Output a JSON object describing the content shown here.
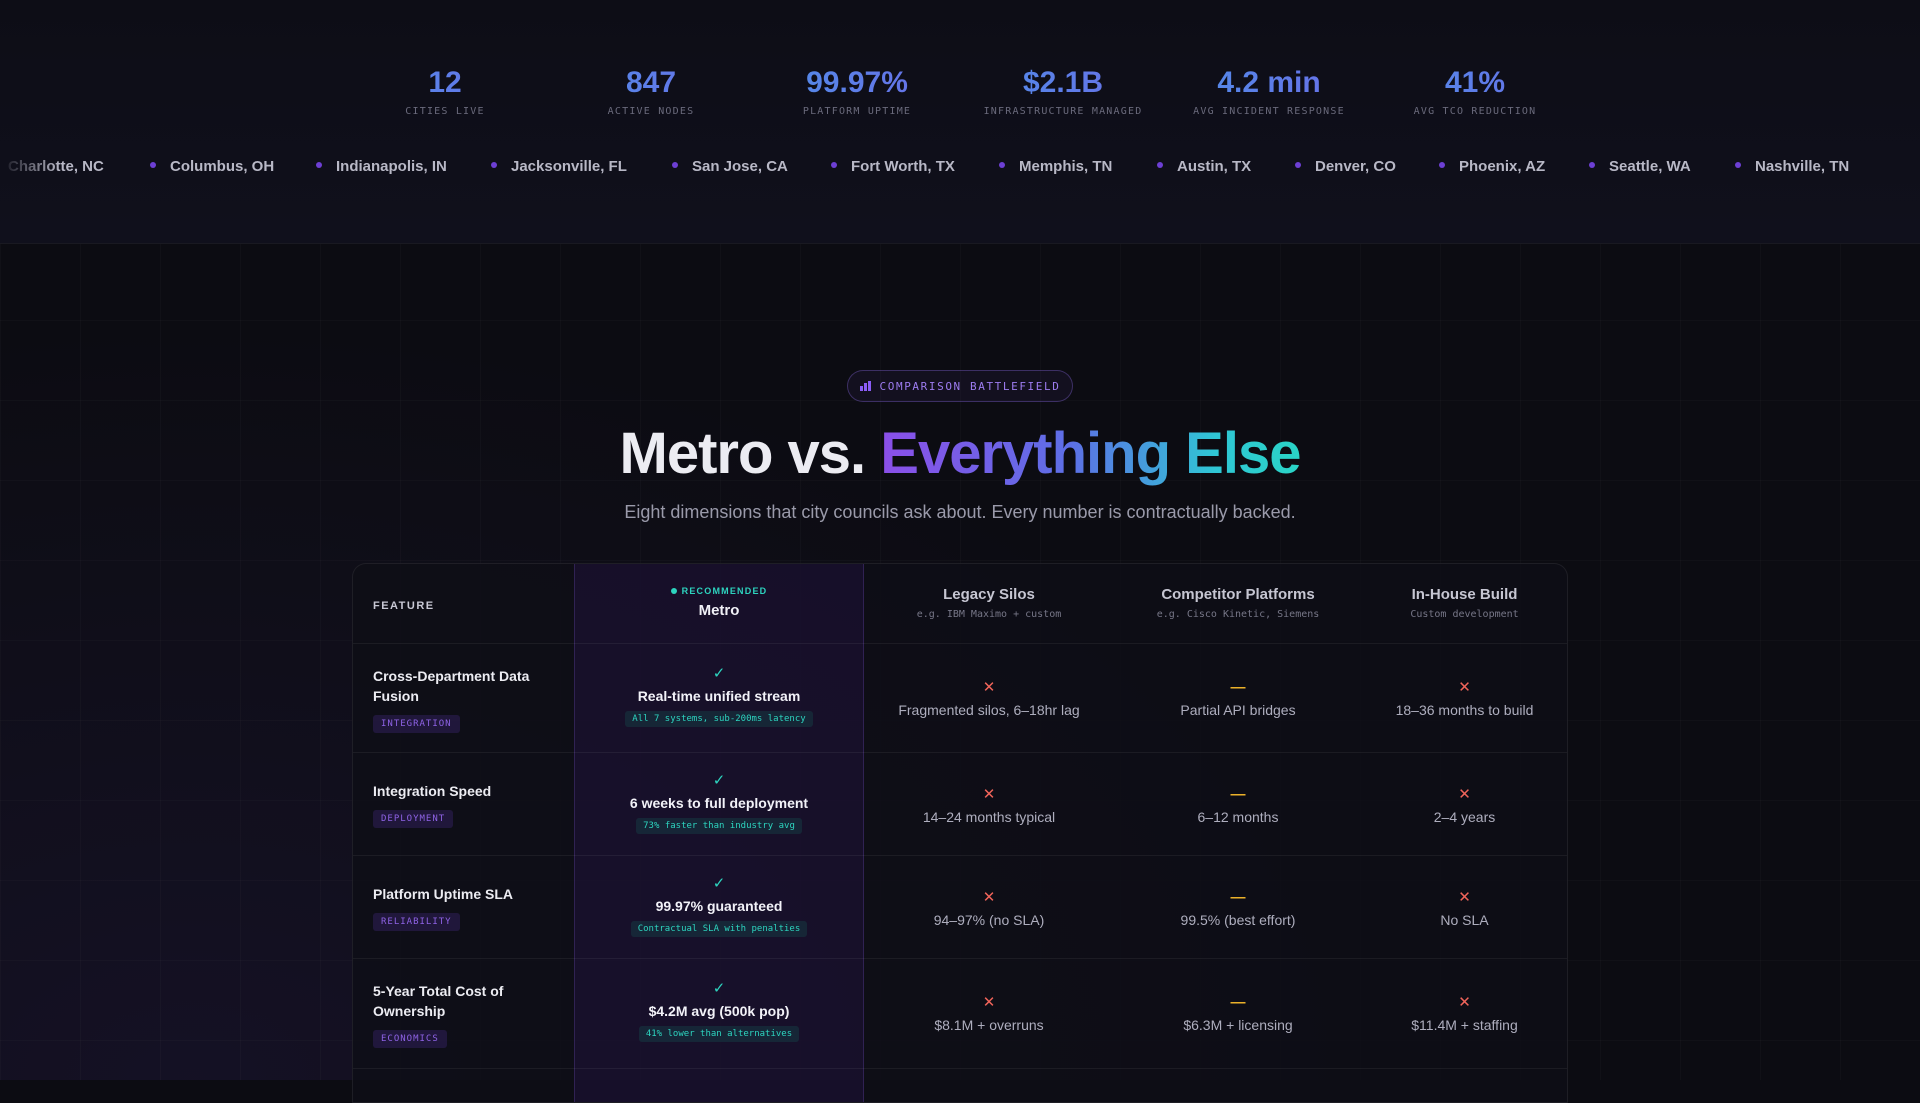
{
  "stats": [
    {
      "value": "12",
      "label": "CITIES LIVE"
    },
    {
      "value": "847",
      "label": "ACTIVE NODES"
    },
    {
      "value": "99.97%",
      "label": "PLATFORM UPTIME"
    },
    {
      "value": "$2.1B",
      "label": "INFRASTRUCTURE MANAGED"
    },
    {
      "value": "4.2 min",
      "label": "AVG INCIDENT RESPONSE"
    },
    {
      "value": "41%",
      "label": "AVG TCO REDUCTION"
    }
  ],
  "cities": [
    "Charlotte, NC",
    "Columbus, OH",
    "Indianapolis, IN",
    "Jacksonville, FL",
    "San Jose, CA",
    "Fort Worth, TX",
    "Memphis, TN",
    "Austin, TX",
    "Denver, CO",
    "Phoenix, AZ",
    "Seattle, WA",
    "Nashville, TN"
  ],
  "section": {
    "badge": "COMPARISON BATTLEFIELD",
    "title_plain": "Metro vs. ",
    "title_gradient": "Everything Else",
    "subtitle": "Eight dimensions that city councils ask about. Every number is contractually backed."
  },
  "table": {
    "feature_header": "FEATURE",
    "metro": {
      "recommended": "RECOMMENDED",
      "name": "Metro"
    },
    "columns": [
      {
        "title": "Legacy Silos",
        "subtitle": "e.g. IBM Maximo + custom"
      },
      {
        "title": "Competitor Platforms",
        "subtitle": "e.g. Cisco Kinetic, Siemens"
      },
      {
        "title": "In-House Build",
        "subtitle": "Custom development"
      }
    ],
    "rows": [
      {
        "feature": "Cross-Department Data Fusion",
        "tag": "INTEGRATION",
        "metro_main": "Real-time unified stream",
        "metro_note": "All 7 systems, sub-200ms latency",
        "legacy": "Fragmented silos, 6–18hr lag",
        "competitor": "Partial API bridges",
        "inhouse": "18–36 months to build"
      },
      {
        "feature": "Integration Speed",
        "tag": "DEPLOYMENT",
        "metro_main": "6 weeks to full deployment",
        "metro_note": "73% faster than industry avg",
        "legacy": "14–24 months typical",
        "competitor": "6–12 months",
        "inhouse": "2–4 years"
      },
      {
        "feature": "Platform Uptime SLA",
        "tag": "RELIABILITY",
        "metro_main": "99.97% guaranteed",
        "metro_note": "Contractual SLA with penalties",
        "legacy": "94–97% (no SLA)",
        "competitor": "99.5% (best effort)",
        "inhouse": "No SLA"
      },
      {
        "feature": "5-Year Total Cost of Ownership",
        "tag": "ECONOMICS",
        "metro_main": "$4.2M avg (500k pop)",
        "metro_note": "41% lower than alternatives",
        "legacy": "$8.1M + overruns",
        "competitor": "$6.3M + licensing",
        "inhouse": "$11.4M + staffing"
      }
    ],
    "symbols": {
      "check": "✓",
      "cross": "✕",
      "partial": "—"
    }
  },
  "colors": {
    "accent_purple": "#8b5cf6",
    "accent_teal": "#2dd4bf",
    "cross_red": "#f0645a",
    "partial_amber": "#f0b42a"
  }
}
